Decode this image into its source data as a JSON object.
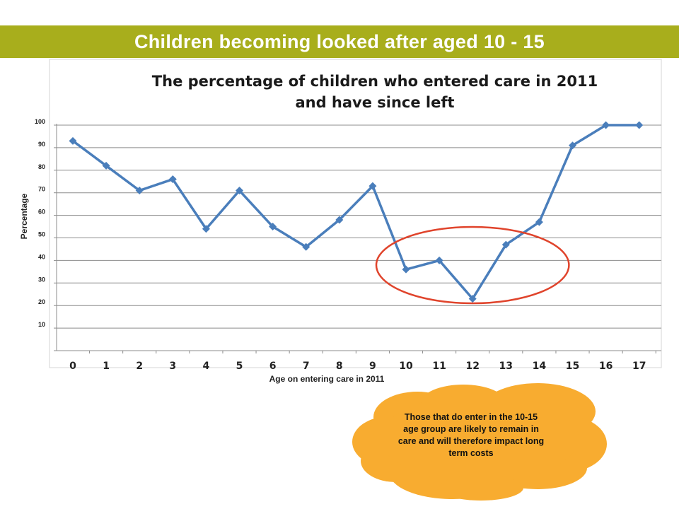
{
  "header": {
    "title": "Children becoming looked after aged 10 - 15",
    "banner_color": "#a8ae1c"
  },
  "chart_data": {
    "type": "line",
    "title_lines": [
      "The percentage of children who entered care in 2011",
      "and have since left"
    ],
    "xlabel": "Age on entering  care in 2011",
    "ylabel": "Percentage",
    "categories": [
      "0",
      "1",
      "2",
      "3",
      "4",
      "5",
      "6",
      "7",
      "8",
      "9",
      "10",
      "11",
      "12",
      "13",
      "14",
      "15",
      "16",
      "17"
    ],
    "series": [
      {
        "values": [
          93,
          82,
          71,
          76,
          54,
          71,
          55,
          46,
          58,
          73,
          36,
          40,
          23,
          47,
          57,
          91,
          100,
          100
        ],
        "color": "#4a7ebb"
      }
    ],
    "yticks": [
      10,
      20,
      30,
      40,
      50,
      60,
      70,
      80,
      90,
      100
    ],
    "ylim": [
      0,
      100
    ],
    "grid": true,
    "highlight": {
      "from": "10",
      "to": "14",
      "color": "#e0442c"
    }
  },
  "callout": {
    "text": "Those that do enter in the 10-15 age group are likely to remain in care and will therefore impact long term costs",
    "color": "#f8ac30"
  }
}
